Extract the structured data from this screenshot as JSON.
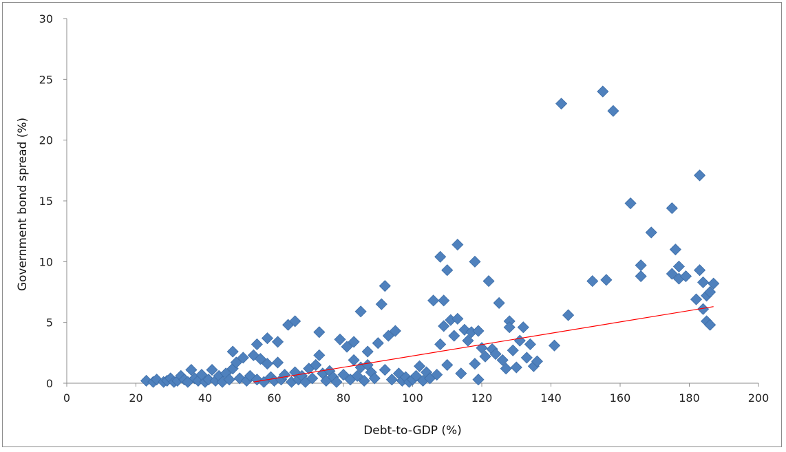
{
  "chart_data": {
    "type": "scatter",
    "xlabel": "Debt-to-GDP (%)",
    "ylabel": "Government bond spread (%)",
    "xlim": [
      0,
      200
    ],
    "ylim": [
      0,
      30
    ],
    "x_ticks": [
      0,
      20,
      40,
      60,
      80,
      100,
      120,
      140,
      160,
      180,
      200
    ],
    "y_ticks": [
      0,
      5,
      10,
      15,
      20,
      25,
      30
    ],
    "grid": false,
    "legend": "none",
    "series": [
      {
        "marker": "diamond",
        "color": "#4F81BD",
        "points": [
          [
            23,
            0.2
          ],
          [
            25,
            0.1
          ],
          [
            26,
            0.3
          ],
          [
            28,
            0.1
          ],
          [
            29,
            0.2
          ],
          [
            30,
            0.4
          ],
          [
            31,
            0.1
          ],
          [
            32,
            0.2
          ],
          [
            33,
            0.6
          ],
          [
            34,
            0.3
          ],
          [
            35,
            0.1
          ],
          [
            36,
            1.1
          ],
          [
            37,
            0.4
          ],
          [
            38,
            0.2
          ],
          [
            39,
            0.7
          ],
          [
            40,
            0.1
          ],
          [
            41,
            0.3
          ],
          [
            42,
            1.1
          ],
          [
            43,
            0.2
          ],
          [
            44,
            0.6
          ],
          [
            45,
            0.1
          ],
          [
            46,
            0.8
          ],
          [
            47,
            0.3
          ],
          [
            48,
            2.6
          ],
          [
            48,
            1.2
          ],
          [
            49,
            1.7
          ],
          [
            50,
            0.4
          ],
          [
            51,
            2.1
          ],
          [
            52,
            0.2
          ],
          [
            53,
            0.6
          ],
          [
            54,
            2.3
          ],
          [
            55,
            3.2
          ],
          [
            55,
            0.3
          ],
          [
            56,
            2.0
          ],
          [
            57,
            0.1
          ],
          [
            58,
            3.7
          ],
          [
            58,
            1.6
          ],
          [
            59,
            0.5
          ],
          [
            60,
            0.2
          ],
          [
            61,
            1.7
          ],
          [
            61,
            3.4
          ],
          [
            62,
            0.3
          ],
          [
            63,
            0.7
          ],
          [
            64,
            4.8
          ],
          [
            65,
            0.1
          ],
          [
            66,
            5.1
          ],
          [
            66,
            0.9
          ],
          [
            67,
            0.3
          ],
          [
            68,
            0.6
          ],
          [
            69,
            0.1
          ],
          [
            70,
            1.2
          ],
          [
            71,
            0.4
          ],
          [
            72,
            1.5
          ],
          [
            73,
            4.2
          ],
          [
            73,
            2.3
          ],
          [
            74,
            0.8
          ],
          [
            75,
            0.2
          ],
          [
            76,
            1.0
          ],
          [
            77,
            0.5
          ],
          [
            78,
            0.1
          ],
          [
            79,
            3.6
          ],
          [
            80,
            0.7
          ],
          [
            81,
            3.0
          ],
          [
            82,
            0.3
          ],
          [
            83,
            3.4
          ],
          [
            83,
            1.9
          ],
          [
            84,
            0.6
          ],
          [
            85,
            1.3
          ],
          [
            85,
            5.9
          ],
          [
            86,
            0.2
          ],
          [
            87,
            2.6
          ],
          [
            87,
            1.5
          ],
          [
            88,
            0.9
          ],
          [
            89,
            0.4
          ],
          [
            90,
            3.3
          ],
          [
            91,
            6.5
          ],
          [
            92,
            8.0
          ],
          [
            92,
            1.1
          ],
          [
            93,
            3.9
          ],
          [
            94,
            0.3
          ],
          [
            95,
            4.3
          ],
          [
            96,
            0.8
          ],
          [
            97,
            0.2
          ],
          [
            98,
            0.5
          ],
          [
            99,
            0.1
          ],
          [
            100,
            0.3
          ],
          [
            101,
            0.6
          ],
          [
            102,
            1.4
          ],
          [
            103,
            0.2
          ],
          [
            104,
            0.9
          ],
          [
            105,
            0.4
          ],
          [
            106,
            6.8
          ],
          [
            107,
            0.7
          ],
          [
            108,
            10.4
          ],
          [
            108,
            3.2
          ],
          [
            109,
            6.8
          ],
          [
            109,
            4.7
          ],
          [
            110,
            9.3
          ],
          [
            110,
            1.5
          ],
          [
            111,
            5.2
          ],
          [
            112,
            3.9
          ],
          [
            113,
            11.4
          ],
          [
            113,
            5.3
          ],
          [
            114,
            0.8
          ],
          [
            115,
            4.4
          ],
          [
            116,
            3.5
          ],
          [
            117,
            4.2
          ],
          [
            118,
            10.0
          ],
          [
            118,
            1.6
          ],
          [
            119,
            4.3
          ],
          [
            119,
            0.3
          ],
          [
            120,
            2.9
          ],
          [
            121,
            2.2
          ],
          [
            122,
            8.4
          ],
          [
            123,
            2.8
          ],
          [
            124,
            2.4
          ],
          [
            125,
            6.6
          ],
          [
            126,
            1.9
          ],
          [
            127,
            1.2
          ],
          [
            128,
            5.1
          ],
          [
            128,
            4.6
          ],
          [
            129,
            2.7
          ],
          [
            130,
            1.3
          ],
          [
            131,
            3.5
          ],
          [
            132,
            4.6
          ],
          [
            133,
            2.1
          ],
          [
            134,
            3.2
          ],
          [
            135,
            1.4
          ],
          [
            136,
            1.8
          ],
          [
            141,
            3.1
          ],
          [
            143,
            23.0
          ],
          [
            145,
            5.6
          ],
          [
            152,
            8.4
          ],
          [
            155,
            24.0
          ],
          [
            156,
            8.5
          ],
          [
            158,
            22.4
          ],
          [
            163,
            14.8
          ],
          [
            166,
            8.8
          ],
          [
            166,
            9.7
          ],
          [
            169,
            12.4
          ],
          [
            175,
            14.4
          ],
          [
            175,
            9.0
          ],
          [
            176,
            11.0
          ],
          [
            177,
            9.6
          ],
          [
            177,
            8.6
          ],
          [
            179,
            8.8
          ],
          [
            182,
            6.9
          ],
          [
            183,
            17.1
          ],
          [
            183,
            9.3
          ],
          [
            184,
            8.3
          ],
          [
            184,
            6.1
          ],
          [
            185,
            5.1
          ],
          [
            185,
            7.2
          ],
          [
            186,
            4.8
          ],
          [
            186,
            7.5
          ],
          [
            187,
            8.2
          ]
        ]
      }
    ],
    "trendline": {
      "color": "#FF0000",
      "points": [
        [
          54,
          0.1
        ],
        [
          187,
          6.3
        ]
      ]
    }
  }
}
